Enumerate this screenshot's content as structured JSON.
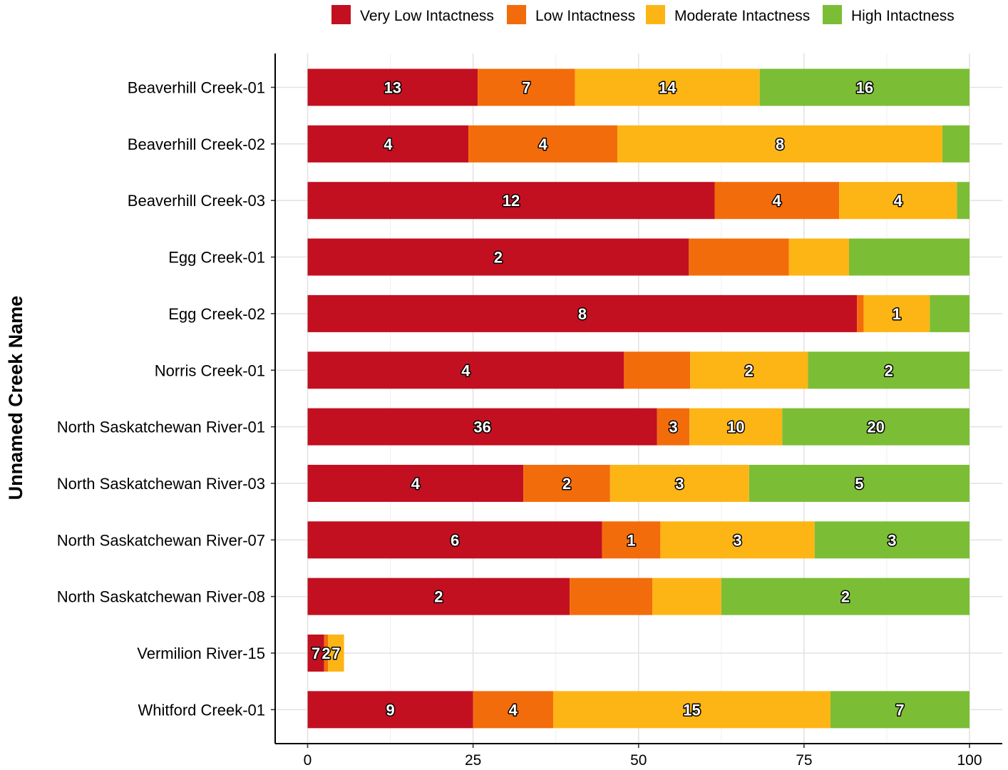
{
  "chart_data": {
    "type": "bar",
    "orientation": "horizontal",
    "stacked": true,
    "title": "",
    "xlabel": "",
    "ylabel": "Unnamed Creek Name",
    "xlim": [
      0,
      100
    ],
    "x_ticks": [
      "0",
      "25",
      "50",
      "75",
      "100"
    ],
    "grid": true,
    "legend_position": "top-right",
    "categories": [
      "Beaverhill Creek-01",
      "Beaverhill Creek-02",
      "Beaverhill Creek-03",
      "Egg Creek-01",
      "Egg Creek-02",
      "Norris Creek-01",
      "North Saskatchewan River-01",
      "North Saskatchewan River-03",
      "North Saskatchewan River-07",
      "North Saskatchewan River-08",
      "Vermilion River-15",
      "Whitford Creek-01"
    ],
    "series": [
      {
        "name": "Very Low Intactness",
        "color": "#C21020",
        "values": [
          25.7,
          24.3,
          61.5,
          57.6,
          83.0,
          47.8,
          52.8,
          32.6,
          44.5,
          39.6,
          2.5,
          25.0
        ],
        "labels": [
          "13",
          "4",
          "12",
          "2",
          "8",
          "4",
          "36",
          "4",
          "6",
          "2",
          "7",
          "9"
        ]
      },
      {
        "name": "Low Intactness",
        "color": "#F36C0B",
        "values": [
          14.7,
          22.5,
          18.8,
          15.1,
          1.0,
          10.0,
          4.9,
          13.1,
          8.8,
          12.5,
          0.6,
          12.1
        ],
        "labels": [
          "7",
          "4",
          "4",
          "",
          "",
          "",
          "3",
          "2",
          "1",
          "",
          "2",
          "4"
        ]
      },
      {
        "name": "Moderate Intactness",
        "color": "#FDB515",
        "values": [
          27.9,
          49.1,
          17.8,
          9.1,
          10.0,
          17.8,
          14.0,
          21.0,
          23.3,
          10.4,
          2.4,
          41.9
        ],
        "labels": [
          "14",
          "8",
          "4",
          "",
          "1",
          "2",
          "10",
          "3",
          "3",
          "",
          "7",
          ""
        ]
      },
      {
        "name": "High Intactness",
        "color": "#7BBE35",
        "values": [
          31.7,
          4.1,
          1.9,
          18.2,
          6.0,
          24.4,
          28.3,
          33.3,
          23.4,
          37.5,
          0,
          21.0
        ],
        "labels": [
          "16",
          "",
          "",
          "",
          "",
          "2",
          "20",
          "5",
          "3",
          "2",
          "",
          "7"
        ]
      }
    ],
    "whitford_moderate_label": "15"
  }
}
